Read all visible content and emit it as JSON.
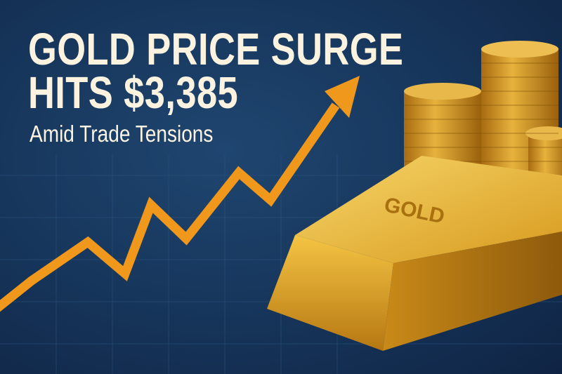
{
  "headline": {
    "line1": "GOLD PRICE SURGE",
    "line2": "HITS $3,385",
    "subtitle": "Amid Trade Tensions"
  },
  "gold_bar_engraving": "GOLD",
  "colors": {
    "background": "#163459",
    "arrow": "#f0981c",
    "text": "#fbf3e0",
    "gold": "#e0a82a"
  }
}
